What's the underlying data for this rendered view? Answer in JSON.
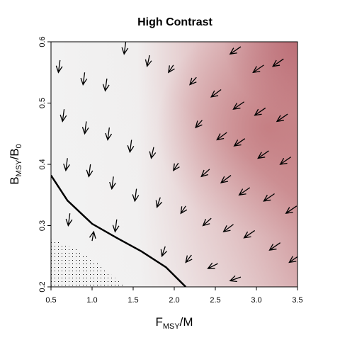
{
  "chart_data": {
    "type": "vector_field",
    "title": "High Contrast",
    "x_label_parts": [
      {
        "text": "F"
      },
      {
        "text": "MSY",
        "sub": true
      },
      {
        "text": "/M"
      }
    ],
    "y_label_parts": [
      {
        "text": "B"
      },
      {
        "text": "MSY",
        "sub": true
      },
      {
        "text": "/B"
      },
      {
        "text": "0",
        "sub": true
      }
    ],
    "xlim": [
      0.5,
      3.5
    ],
    "ylim": [
      0.2,
      0.6
    ],
    "xticks": [
      0.5,
      {
        "value": 1,
        "label": "1.0"
      },
      1.5,
      {
        "value": 2,
        "label": "2.0"
      },
      2.5,
      {
        "value": 3,
        "label": "3.0"
      },
      3.5
    ],
    "yticks": [
      0.2,
      0.3,
      0.4,
      0.5,
      0.6
    ],
    "arrow_color": "#000000",
    "arrows": {
      "x": [
        0.59,
        0.64,
        0.68,
        0.71,
        0.89,
        0.91,
        0.96,
        1.02,
        1.16,
        1.19,
        1.24,
        1.28,
        1.39,
        1.46,
        1.52,
        1.67,
        1.72,
        1.79,
        1.85,
        1.93,
        1.99,
        2.08,
        2.14,
        2.19,
        2.26,
        2.33,
        2.35,
        2.45,
        2.52,
        2.57,
        2.6,
        2.41,
        2.68,
        2.72,
        2.73,
        2.79,
        2.85,
        2.96,
        2.98,
        3.02,
        3.09,
        3.16,
        2.68,
        3.2,
        3.25,
        3.29,
        3.36,
        3.4
      ],
      "y": [
        0.55,
        0.47,
        0.39,
        0.3,
        0.53,
        0.45,
        0.38,
        0.29,
        0.52,
        0.44,
        0.36,
        0.29,
        0.58,
        0.42,
        0.34,
        0.56,
        0.41,
        0.33,
        0.25,
        0.55,
        0.39,
        0.32,
        0.24,
        0.53,
        0.46,
        0.38,
        0.3,
        0.51,
        0.44,
        0.37,
        0.29,
        0.23,
        0.58,
        0.49,
        0.43,
        0.35,
        0.28,
        0.55,
        0.48,
        0.41,
        0.34,
        0.26,
        0.21,
        0.56,
        0.47,
        0.4,
        0.32,
        0.24
      ],
      "dx": [
        -0.02,
        -0.02,
        -0.02,
        -0.02,
        -0.02,
        -0.02,
        -0.02,
        0.02,
        -0.02,
        -0.02,
        -0.02,
        -0.02,
        -0.02,
        -0.02,
        -0.02,
        -0.03,
        -0.03,
        -0.04,
        -0.04,
        -0.06,
        -0.06,
        -0.06,
        -0.07,
        -0.08,
        -0.08,
        -0.1,
        -0.1,
        -0.12,
        -0.12,
        -0.12,
        -0.12,
        -0.12,
        -0.13,
        -0.13,
        -0.13,
        -0.13,
        -0.13,
        -0.13,
        -0.13,
        -0.13,
        -0.13,
        -0.13,
        -0.13,
        -0.13,
        -0.13,
        -0.13,
        -0.13,
        -0.13
      ],
      "dy": [
        -0.02,
        -0.02,
        -0.02,
        -0.02,
        -0.02,
        -0.02,
        -0.02,
        0.015,
        -0.02,
        -0.02,
        -0.02,
        -0.02,
        -0.02,
        -0.02,
        -0.02,
        -0.018,
        -0.018,
        -0.016,
        -0.016,
        -0.012,
        -0.012,
        -0.012,
        -0.012,
        -0.012,
        -0.012,
        -0.012,
        -0.012,
        -0.012,
        -0.012,
        -0.012,
        -0.012,
        -0.008,
        -0.012,
        -0.012,
        -0.012,
        -0.012,
        -0.012,
        -0.012,
        -0.012,
        -0.012,
        -0.012,
        -0.012,
        -0.006,
        -0.012,
        -0.012,
        -0.012,
        -0.012,
        -0.012
      ]
    },
    "curve": {
      "color": "#000000",
      "x": [
        0.5,
        0.7,
        1.0,
        1.3,
        1.6,
        1.9,
        2.14
      ],
      "y": [
        0.382,
        0.341,
        0.303,
        0.28,
        0.258,
        0.232,
        0.2
      ]
    },
    "stipple_boundary": {
      "x": [
        0.5,
        0.8,
        1.1,
        1.4
      ],
      "y": [
        0.278,
        0.262,
        0.236,
        0.2
      ]
    }
  }
}
